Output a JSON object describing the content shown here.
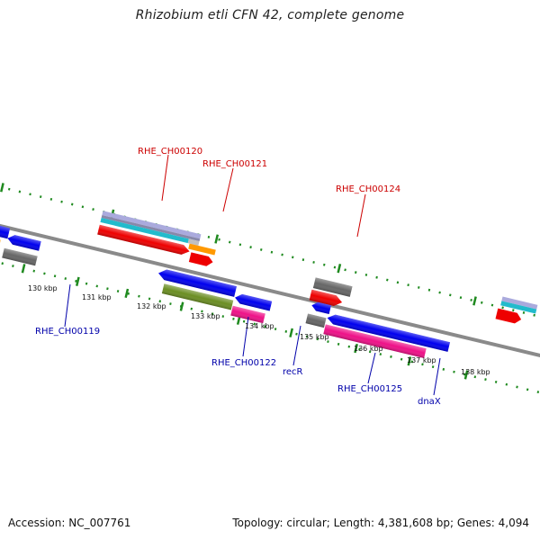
{
  "title": "Rhizobium etli CFN 42, complete genome",
  "footer": {
    "accession": "Accession: NC_007761",
    "summary": "Topology: circular; Length: 4,381,608 bp; Genes: 4,094"
  },
  "colors": {
    "backbone": "#8a8a8a",
    "tick": "#1f8a1f",
    "label_top": "#cc0000",
    "label_bottom": "#0000aa",
    "red": "#ee0000",
    "blue": "#0000ee",
    "orange": "#ff9900",
    "gray": "#666666",
    "magenta": "#ee1188",
    "olive": "#6b8e23",
    "cyan": "#22bbcc",
    "lavender": "#aaaadd"
  },
  "kbp_ticks": [
    "130 kbp",
    "131 kbp",
    "132 kbp",
    "133 kbp",
    "134 kbp",
    "135 kbp",
    "136 kbp",
    "137 kbp",
    "138 kbp"
  ],
  "gene_labels_top": [
    "RHE_CH00120",
    "RHE_CH00121",
    "RHE_CH00124"
  ],
  "gene_labels_bottom": [
    "RHE_CH00119",
    "RHE_CH00122",
    "recR",
    "RHE_CH00125",
    "dnaX"
  ]
}
